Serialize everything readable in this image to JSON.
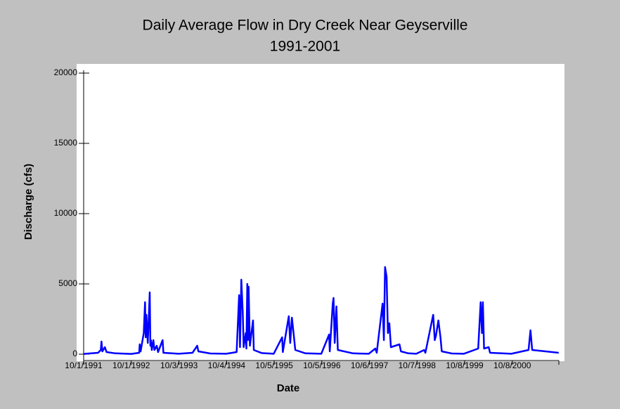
{
  "chart_data": {
    "type": "line",
    "title": "Daily Average Flow in Dry Creek Near Geyserville",
    "subtitle": "1991-2001",
    "x_label": "Date",
    "y_label": "Discharge (cfs)",
    "xlim": [
      "1991-10-01",
      "2001-10-01"
    ],
    "xticks": [
      {
        "value": "1991-10-01",
        "label": "10/1/1991"
      },
      {
        "value": "1992-10-01",
        "label": "10/1/1992"
      },
      {
        "value": "1993-10-03",
        "label": "10/3/1993"
      },
      {
        "value": "1994-10-04",
        "label": "10/4/1994"
      },
      {
        "value": "1995-10-05",
        "label": "10/5/1995"
      },
      {
        "value": "1996-10-05",
        "label": "10/5/1996"
      },
      {
        "value": "1997-10-06",
        "label": "10/6/1997"
      },
      {
        "value": "1998-10-07",
        "label": "10/7/1998"
      },
      {
        "value": "1999-10-08",
        "label": "10/8/1999"
      },
      {
        "value": "2000-10-08",
        "label": "10/8/2000"
      }
    ],
    "ylim": [
      0,
      20000
    ],
    "yticks": [
      0,
      5000,
      10000,
      15000,
      20000
    ],
    "grid": false,
    "x": [
      "1991-10-01",
      "1992-01-20",
      "1992-02-10",
      "1992-02-15",
      "1992-02-22",
      "1992-03-12",
      "1992-03-25",
      "1992-06-01",
      "1992-10-01",
      "1992-12-01",
      "1992-12-05",
      "1992-12-12",
      "1993-01-05",
      "1993-01-15",
      "1993-01-20",
      "1993-01-25",
      "1993-02-05",
      "1993-02-20",
      "1993-02-25",
      "1993-03-01",
      "1993-03-08",
      "1993-03-20",
      "1993-03-28",
      "1993-04-15",
      "1993-04-25",
      "1993-05-30",
      "1993-06-05",
      "1993-10-01",
      "1994-01-15",
      "1994-02-20",
      "1994-03-01",
      "1994-06-01",
      "1994-10-01",
      "1994-12-20",
      "1995-01-08",
      "1995-01-15",
      "1995-01-25",
      "1995-02-05",
      "1995-02-12",
      "1995-02-28",
      "1995-03-05",
      "1995-03-12",
      "1995-03-17",
      "1995-03-22",
      "1995-04-01",
      "1995-04-25",
      "1995-05-01",
      "1995-07-01",
      "1995-10-01",
      "1995-12-05",
      "1995-12-10",
      "1996-01-25",
      "1996-02-05",
      "1996-02-18",
      "1996-03-05",
      "1996-03-15",
      "1996-06-01",
      "1996-10-01",
      "1996-11-30",
      "1996-12-05",
      "1996-12-28",
      "1997-01-03",
      "1997-01-12",
      "1997-01-25",
      "1997-02-05",
      "1997-06-01",
      "1997-10-01",
      "1997-11-20",
      "1997-12-01",
      "1998-01-15",
      "1998-01-25",
      "1998-02-03",
      "1998-02-15",
      "1998-02-25",
      "1998-03-08",
      "1998-03-20",
      "1998-05-25",
      "1998-06-05",
      "1998-08-01",
      "1998-10-01",
      "1998-12-01",
      "1998-12-10",
      "1999-02-08",
      "1999-02-20",
      "1999-03-01",
      "1999-03-20",
      "1999-04-05",
      "1999-04-15",
      "1999-07-01",
      "1999-10-01",
      "2000-01-20",
      "2000-02-08",
      "2000-02-18",
      "2000-02-25",
      "2000-03-05",
      "2000-04-10",
      "2000-04-20",
      "2000-10-01",
      "2001-02-10",
      "2001-02-25",
      "2001-03-10",
      "2001-09-30"
    ],
    "series": [
      {
        "name": "Discharge",
        "color": "#0000ff",
        "values": [
          20,
          100,
          300,
          900,
          200,
          500,
          150,
          60,
          20,
          100,
          700,
          200,
          1500,
          3700,
          1200,
          2800,
          800,
          4400,
          600,
          1000,
          300,
          1000,
          300,
          600,
          150,
          1000,
          100,
          30,
          100,
          600,
          200,
          50,
          30,
          150,
          4200,
          500,
          5300,
          3000,
          500,
          1500,
          400,
          5000,
          1000,
          4800,
          600,
          2400,
          300,
          80,
          30,
          1200,
          150,
          2700,
          800,
          2600,
          1200,
          300,
          60,
          30,
          1400,
          200,
          3600,
          4000,
          800,
          3400,
          300,
          60,
          30,
          400,
          100,
          3600,
          1000,
          6200,
          5500,
          1500,
          2200,
          500,
          700,
          200,
          60,
          30,
          300,
          100,
          2800,
          1000,
          1300,
          2400,
          1200,
          200,
          50,
          30,
          400,
          3700,
          1500,
          3700,
          400,
          500,
          100,
          30,
          300,
          1700,
          300,
          100
        ]
      }
    ]
  }
}
